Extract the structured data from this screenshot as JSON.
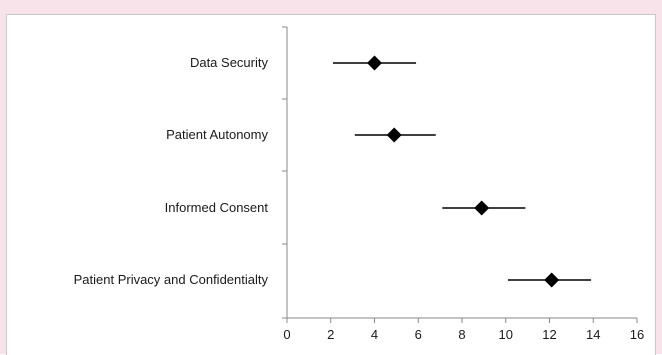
{
  "chart_data": {
    "type": "scatter",
    "subtype": "forest-plot",
    "title": "",
    "xlabel": "",
    "ylabel": "",
    "categories": [
      "Data Security",
      "Patient Autonomy",
      "Informed Consent",
      "Patient Privacy and Confidentialty"
    ],
    "series": [
      {
        "points": [
          {
            "category": "Data Security",
            "x": 4.0,
            "low": 2.1,
            "high": 5.9
          },
          {
            "category": "Patient Autonomy",
            "x": 4.9,
            "low": 3.1,
            "high": 6.8
          },
          {
            "category": "Informed Consent",
            "x": 8.9,
            "low": 7.1,
            "high": 10.9
          },
          {
            "category": "Patient Privacy and Confidentialty",
            "x": 12.1,
            "low": 10.1,
            "high": 13.9
          }
        ]
      }
    ],
    "xlim": [
      0,
      16
    ],
    "x_ticks": [
      "0",
      "2",
      "4",
      "6",
      "8",
      "10",
      "12",
      "14",
      "16"
    ],
    "marker": "diamond",
    "grid": false,
    "legend": "none",
    "colors": {
      "marker": "#000000",
      "axis": "#888888",
      "background": "#f9e3ea"
    }
  }
}
